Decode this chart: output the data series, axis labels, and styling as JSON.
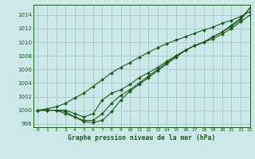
{
  "title": "Graphe pression niveau de la mer (hPa)",
  "bg_color": "#cce8e8",
  "grid_color": "#aacccc",
  "line_color": "#1a5c1a",
  "xlim": [
    -0.5,
    23
  ],
  "ylim": [
    997.5,
    1015.5
  ],
  "xticks": [
    0,
    1,
    2,
    3,
    4,
    5,
    6,
    7,
    8,
    9,
    10,
    11,
    12,
    13,
    14,
    15,
    16,
    17,
    18,
    19,
    20,
    21,
    22,
    23
  ],
  "yticks": [
    998,
    1000,
    1002,
    1004,
    1006,
    1008,
    1010,
    1012,
    1014
  ],
  "line1": [
    1000.0,
    1000.0,
    1000.0,
    999.8,
    999.0,
    998.3,
    998.2,
    998.5,
    999.8,
    1001.5,
    1002.8,
    1003.8,
    1004.8,
    1005.8,
    1006.8,
    1007.8,
    1008.8,
    1009.5,
    1010.0,
    1010.8,
    1011.5,
    1012.5,
    1013.5,
    1015.0
  ],
  "line2": [
    1000.0,
    1000.0,
    1000.0,
    999.5,
    999.0,
    998.5,
    998.5,
    999.5,
    1001.0,
    1002.2,
    1003.0,
    1004.0,
    1005.0,
    1006.0,
    1007.0,
    1008.0,
    1008.8,
    1009.5,
    1010.0,
    1010.5,
    1011.2,
    1012.0,
    1013.0,
    1014.0
  ],
  "line3": [
    1000.0,
    1000.0,
    1000.0,
    1000.0,
    999.5,
    999.0,
    999.5,
    1001.5,
    1002.5,
    1003.0,
    1003.8,
    1004.8,
    1005.5,
    1006.3,
    1007.2,
    1008.0,
    1008.8,
    1009.5,
    1010.0,
    1010.8,
    1011.5,
    1012.3,
    1013.3,
    1015.0
  ],
  "line4": [
    1000.0,
    1000.2,
    1000.5,
    1001.0,
    1001.8,
    1002.5,
    1003.5,
    1004.5,
    1005.5,
    1006.3,
    1007.0,
    1007.8,
    1008.5,
    1009.2,
    1009.8,
    1010.3,
    1010.8,
    1011.3,
    1011.8,
    1012.2,
    1012.8,
    1013.2,
    1013.8,
    1014.5
  ],
  "figsize": [
    3.2,
    2.0
  ],
  "dpi": 100
}
